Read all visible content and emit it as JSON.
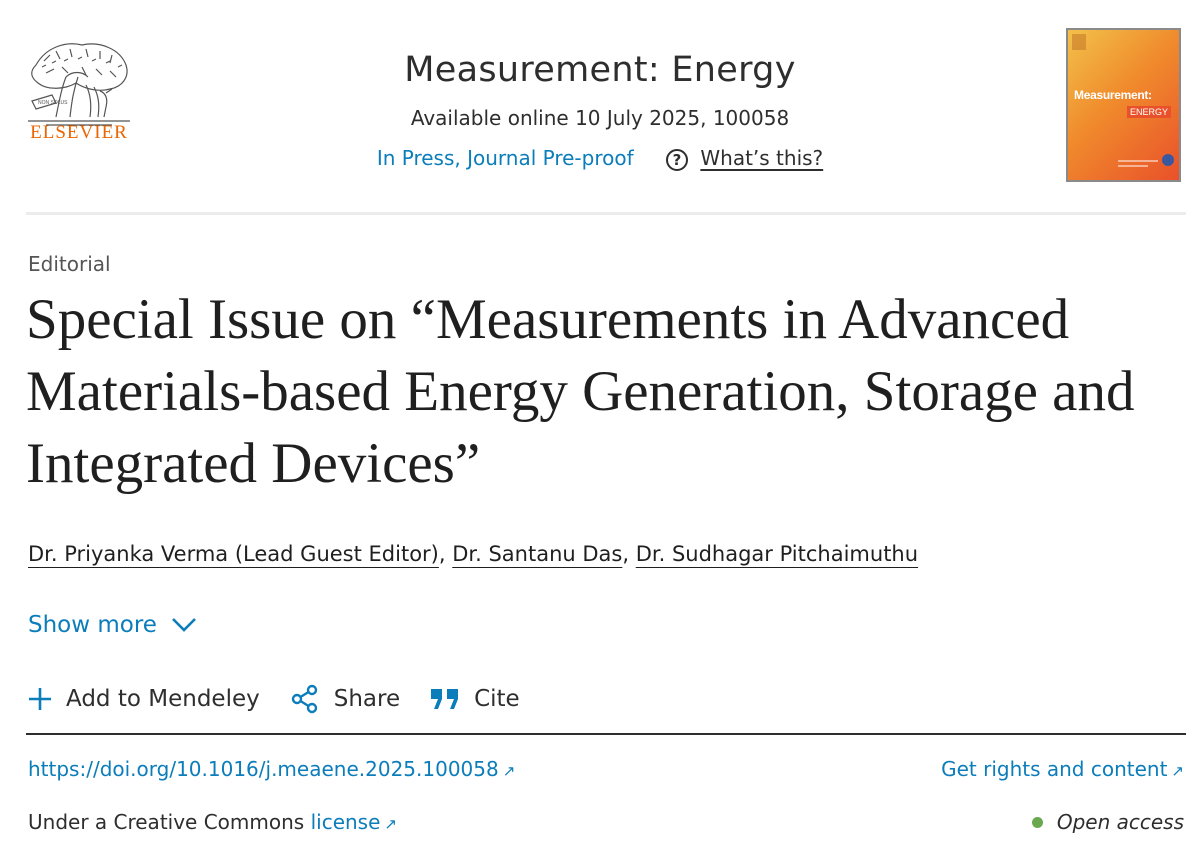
{
  "publisher": {
    "logo_text": "ELSEVIER"
  },
  "journal": {
    "title": "Measurement: Energy",
    "online": "Available online 10 July 2025, 100058",
    "status_link": "In Press, Journal Pre-proof",
    "help_icon_text": "?",
    "whats_this": "What’s this?",
    "cover_title": "Measurement:",
    "cover_sub": "ENERGY"
  },
  "article": {
    "type": "Editorial",
    "title": "Special Issue on “Measurements in Advanced Materials-based Energy Generation, Storage and Integrated Devices”",
    "authors": [
      "Dr. Priyanka Verma (Lead Guest Editor)",
      "Dr. Santanu Das",
      "Dr. Sudhagar Pitchaimuthu"
    ],
    "separator": ", ",
    "show_more": "Show more"
  },
  "actions": {
    "mendeley": "Add to Mendeley",
    "share": "Share",
    "cite": "Cite"
  },
  "links": {
    "doi": "https://doi.org/10.1016/j.meaene.2025.100058",
    "rights": "Get rights and content",
    "license_prefix": "Under a Creative Commons ",
    "license_link": "license",
    "open_access": "Open access",
    "external_arrow": "↗"
  },
  "colors": {
    "link": "#0c7dbb",
    "brand": "#eb6500",
    "open_access_dot": "#6aa84f"
  }
}
